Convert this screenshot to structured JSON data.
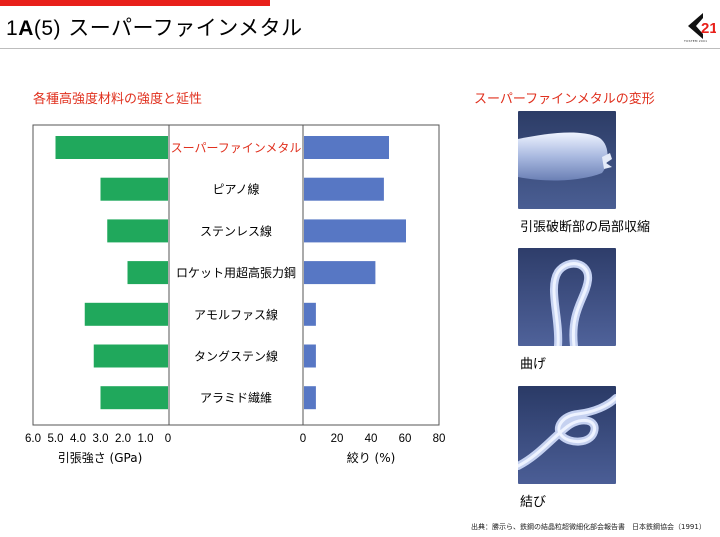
{
  "header": {
    "title_num": "1",
    "title_bold": "A",
    "title_paren": "(5)",
    "title_text": "スーパーファインメタル"
  },
  "logo": {
    "mark": "21",
    "caption": "TOSTEM 2001"
  },
  "left_section": {
    "title": "各種高強度材料の強度と延性"
  },
  "right_section": {
    "title": "スーパーファインメタルの変形"
  },
  "photos": [
    {
      "caption": "引張破断部の局部収縮"
    },
    {
      "caption": "曲げ"
    },
    {
      "caption": "結び"
    }
  ],
  "source_note": "出典：勝示ら、鉄鋼の結晶粒超微細化部会報告書　日本鉄鋼協会（1991）",
  "colors": {
    "accent": "#e0301e",
    "green_bar": "#20a85c",
    "blue_bar": "#5777c4",
    "highlight_label": "#e0301e"
  },
  "chart_data": {
    "type": "bar",
    "categories": [
      "スーパーファインメタル",
      "ピアノ線",
      "ステンレス線",
      "ロケット用超高張力鋼",
      "アモルファス線",
      "タングステン線",
      "アラミド繊維"
    ],
    "highlight_category": "スーパーファインメタル",
    "panels": [
      {
        "orientation": "horizontal-reversed",
        "values": [
          5.0,
          3.0,
          2.7,
          1.8,
          3.7,
          3.3,
          3.0
        ],
        "xlim": [
          6.0,
          0
        ],
        "ticks": [
          "6.0",
          "5.0",
          "4.0",
          "3.0",
          "2.0",
          "1.0",
          "0"
        ],
        "xlabel": "引張強さ (GPa)"
      },
      {
        "orientation": "horizontal",
        "values": [
          50,
          47,
          60,
          42,
          7,
          7,
          7
        ],
        "xlim": [
          0,
          80
        ],
        "ticks": [
          "0",
          "20",
          "40",
          "60",
          "80"
        ],
        "xlabel": "絞り (%)"
      }
    ],
    "grid": false
  }
}
